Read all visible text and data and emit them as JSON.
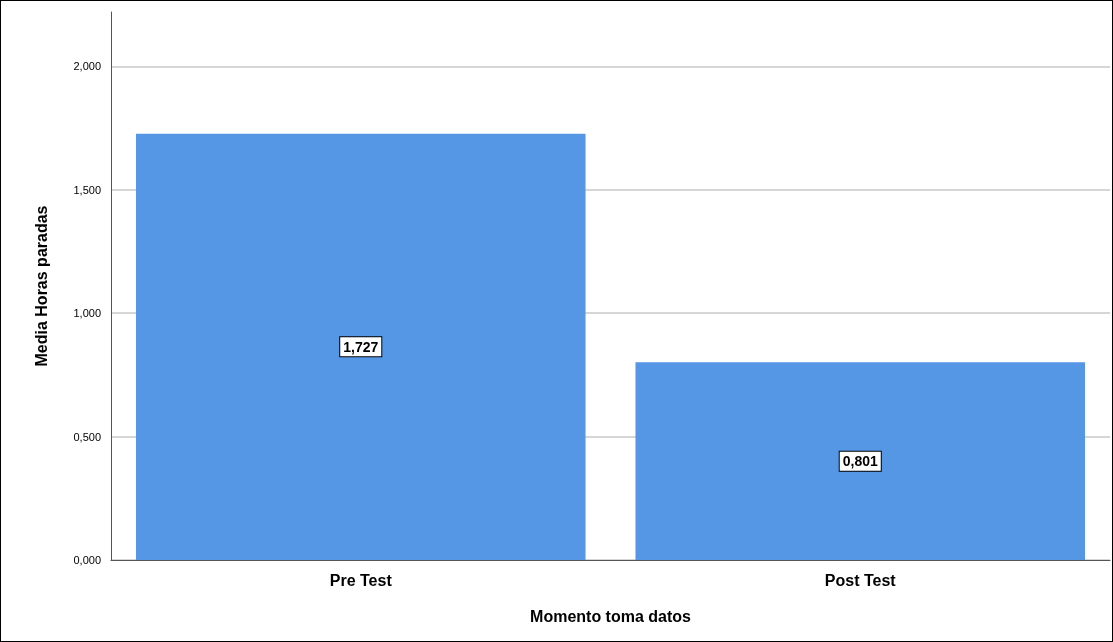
{
  "chart_data": {
    "type": "bar",
    "xlabel": "Momento toma datos",
    "ylabel": "Media Horas paradas",
    "categories": [
      "Pre Test",
      "Post Test"
    ],
    "values": [
      1.727,
      0.801
    ],
    "color": "#5596e5",
    "value_labels": [
      "1,727",
      "0,801"
    ],
    "ylim": [
      0,
      2.22
    ],
    "yticks": [
      {
        "value": 0,
        "label": "0,000"
      },
      {
        "value": 0.5,
        "label": "0,500"
      },
      {
        "value": 1,
        "label": "1,000"
      },
      {
        "value": 1.5,
        "label": "1,500"
      },
      {
        "value": 2,
        "label": "2,000"
      }
    ],
    "grid": "y"
  }
}
